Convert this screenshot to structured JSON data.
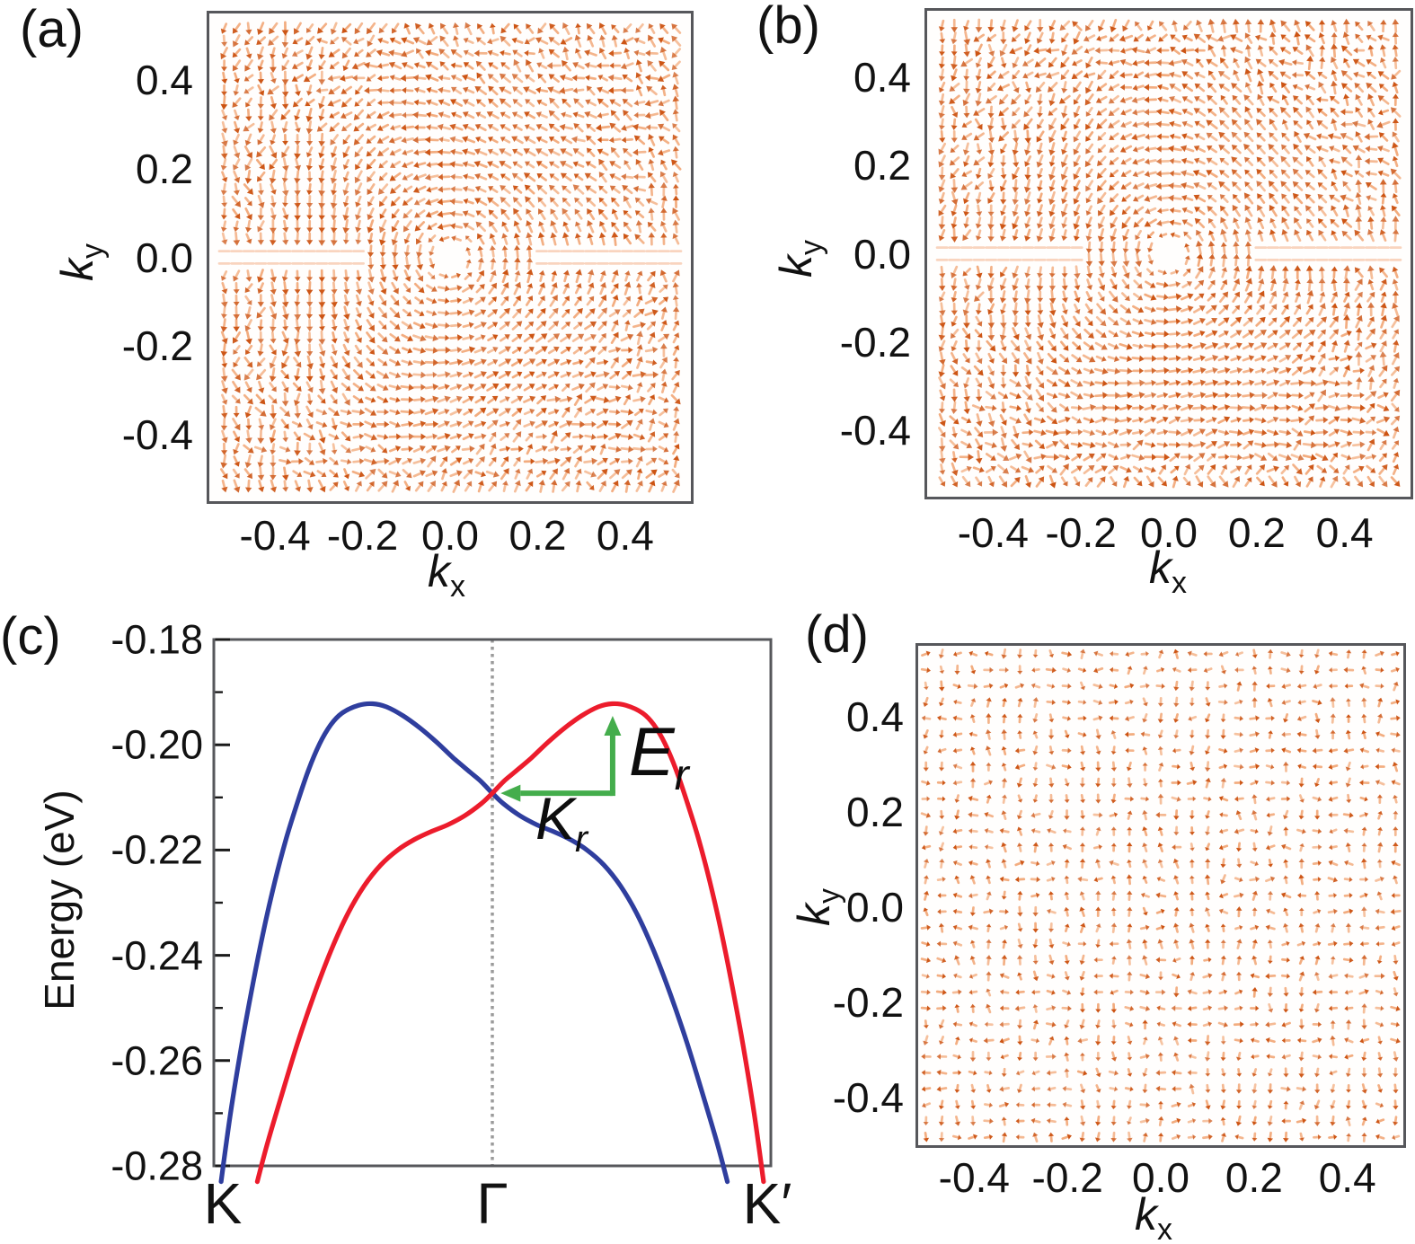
{
  "colors": {
    "arrow_head": "#cc5312",
    "arrow_tail": "#f09c66",
    "frame": "#56575b",
    "tick_text": "#121212",
    "blue_band": "#2f3e9e",
    "red_band": "#ec1c2c",
    "green_annotation": "#44ad4c",
    "gamma_line": "#9b9b9b"
  },
  "chart_data": [
    {
      "panel_label": "(a)",
      "type": "quiver",
      "xlabel_base": "k",
      "xlabel_sub": "x",
      "ylabel_base": "k",
      "ylabel_sub": "y",
      "x_tick_labels": [
        "-0.4",
        "-0.2",
        "0.0",
        "0.2",
        "0.4"
      ],
      "y_tick_labels": [
        "0.4",
        "0.2",
        "0.0",
        "-0.2",
        "-0.4"
      ],
      "xlim": [
        -0.55,
        0.55
      ],
      "ylim": [
        -0.55,
        0.55
      ],
      "grid": "38x38 arrows",
      "field_description": "in-plane spin texture: counter-clockwise vortex centred on Gamma (0,0), hexagonally warped at mid radius, disordered toward zone boundary, faint horizontal dashes along ky=0",
      "seed": 11,
      "warp_phase": 0.0
    },
    {
      "panel_label": "(b)",
      "type": "quiver",
      "xlabel_base": "k",
      "xlabel_sub": "x",
      "ylabel_base": "k",
      "ylabel_sub": "y",
      "x_tick_labels": [
        "-0.4",
        "-0.2",
        "0.0",
        "0.2",
        "0.4"
      ],
      "y_tick_labels": [
        "0.4",
        "0.2",
        "0.0",
        "-0.2",
        "-0.4"
      ],
      "xlim": [
        -0.55,
        0.55
      ],
      "ylim": [
        -0.55,
        0.55
      ],
      "grid": "38x38 arrows",
      "field_description": "same vortex spin texture as panel (a) for the partner spin-split band",
      "seed": 47,
      "warp_phase": 0.9
    },
    {
      "panel_label": "(c)",
      "type": "line",
      "ylabel": "Energy (eV)",
      "x_tick_labels": [
        "K",
        "Γ",
        "K′"
      ],
      "y_tick_labels": [
        "-0.18",
        "-0.20",
        "-0.22",
        "-0.24",
        "-0.26",
        "-0.28"
      ],
      "ylim": [
        -0.28,
        -0.18
      ],
      "x_path": "K → Γ → K′",
      "gamma_line_x": 0.5,
      "band_crossing": {
        "x": 0.5,
        "energy": -0.209
      },
      "series": [
        {
          "name": "blue band",
          "color": "#2f3e9e",
          "points": [
            [
              0.013,
              -0.283
            ],
            [
              0.03,
              -0.27
            ],
            [
              0.05,
              -0.257
            ],
            [
              0.07,
              -0.2455
            ],
            [
              0.09,
              -0.235
            ],
            [
              0.11,
              -0.2258
            ],
            [
              0.13,
              -0.2178
            ],
            [
              0.15,
              -0.211
            ],
            [
              0.17,
              -0.2048
            ],
            [
              0.19,
              -0.1998
            ],
            [
              0.21,
              -0.1962
            ],
            [
              0.23,
              -0.194
            ],
            [
              0.26,
              -0.1925
            ],
            [
              0.285,
              -0.1922
            ],
            [
              0.31,
              -0.1928
            ],
            [
              0.34,
              -0.1945
            ],
            [
              0.37,
              -0.1968
            ],
            [
              0.4,
              -0.1995
            ],
            [
              0.43,
              -0.2025
            ],
            [
              0.46,
              -0.2052
            ],
            [
              0.48,
              -0.207
            ],
            [
              0.5,
              -0.2092
            ],
            [
              0.52,
              -0.2112
            ],
            [
              0.55,
              -0.2135
            ],
            [
              0.58,
              -0.2152
            ],
            [
              0.61,
              -0.2165
            ],
            [
              0.64,
              -0.218
            ],
            [
              0.67,
              -0.22
            ],
            [
              0.7,
              -0.2228
            ],
            [
              0.73,
              -0.2268
            ],
            [
              0.76,
              -0.2322
            ],
            [
              0.79,
              -0.2392
            ],
            [
              0.82,
              -0.2475
            ],
            [
              0.85,
              -0.2568
            ],
            [
              0.88,
              -0.2672
            ],
            [
              0.905,
              -0.2762
            ],
            [
              0.922,
              -0.283
            ]
          ]
        },
        {
          "name": "red band",
          "color": "#ec1c2c",
          "points": [
            [
              0.078,
              -0.283
            ],
            [
              0.095,
              -0.2762
            ],
            [
              0.12,
              -0.2672
            ],
            [
              0.15,
              -0.2568
            ],
            [
              0.18,
              -0.2475
            ],
            [
              0.21,
              -0.2392
            ],
            [
              0.24,
              -0.2322
            ],
            [
              0.27,
              -0.2268
            ],
            [
              0.3,
              -0.2228
            ],
            [
              0.33,
              -0.22
            ],
            [
              0.36,
              -0.218
            ],
            [
              0.39,
              -0.2165
            ],
            [
              0.42,
              -0.2152
            ],
            [
              0.45,
              -0.2135
            ],
            [
              0.48,
              -0.2112
            ],
            [
              0.5,
              -0.2092
            ],
            [
              0.52,
              -0.207
            ],
            [
              0.54,
              -0.2052
            ],
            [
              0.57,
              -0.2025
            ],
            [
              0.6,
              -0.1995
            ],
            [
              0.63,
              -0.1968
            ],
            [
              0.66,
              -0.1945
            ],
            [
              0.69,
              -0.1928
            ],
            [
              0.715,
              -0.1922
            ],
            [
              0.74,
              -0.1925
            ],
            [
              0.77,
              -0.194
            ],
            [
              0.79,
              -0.1962
            ],
            [
              0.81,
              -0.1998
            ],
            [
              0.83,
              -0.2048
            ],
            [
              0.85,
              -0.211
            ],
            [
              0.87,
              -0.2178
            ],
            [
              0.89,
              -0.2258
            ],
            [
              0.91,
              -0.235
            ],
            [
              0.93,
              -0.2455
            ],
            [
              0.95,
              -0.257
            ],
            [
              0.97,
              -0.27
            ],
            [
              0.987,
              -0.283
            ]
          ]
        }
      ],
      "annotation_color": "#44ad4c",
      "annotations": [
        {
          "label_base": "E",
          "label_sub": "r",
          "direction": "up",
          "from": [
            0.716,
            -0.2092
          ],
          "to": [
            0.716,
            -0.1945
          ]
        },
        {
          "label_base": "K",
          "label_sub": "r",
          "direction": "left",
          "from": [
            0.716,
            -0.2092
          ],
          "to": [
            0.515,
            -0.2092
          ]
        }
      ]
    },
    {
      "panel_label": "(d)",
      "type": "quiver",
      "xlabel_base": "k",
      "xlabel_sub": "x",
      "ylabel_base": "k",
      "ylabel_sub": "y",
      "x_tick_labels": [
        "-0.4",
        "-0.2",
        "0.0",
        "0.2",
        "0.4"
      ],
      "y_tick_labels": [
        "0.4",
        "0.2",
        "0.0",
        "-0.2",
        "-0.4"
      ],
      "xlim": [
        -0.52,
        0.52
      ],
      "ylim": [
        -0.5,
        0.55
      ],
      "grid": "31x31 arrows",
      "field_description": "nearly random, disordered in-plane spin texture with no vortex",
      "seed": 83
    }
  ]
}
